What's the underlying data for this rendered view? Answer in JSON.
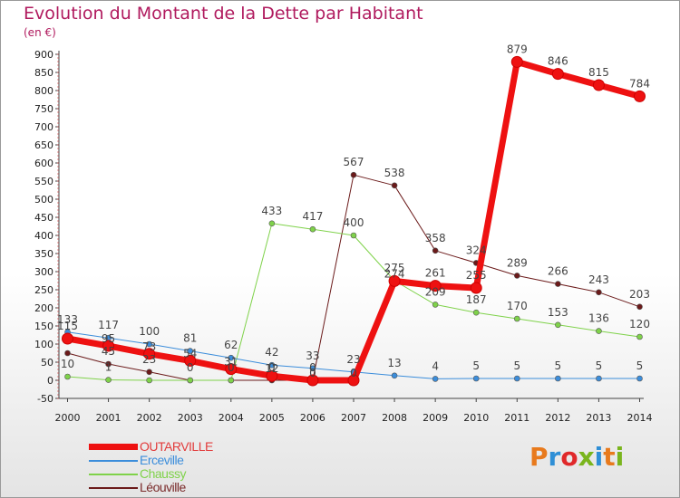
{
  "title": "Evolution du Montant de la Dette par Habitant",
  "subtitle": "(en €)",
  "logo": {
    "text": "Proxiti",
    "colors": [
      "#e87a1d",
      "#2f8fd6",
      "#e0292a",
      "#7ab51d",
      "#2f8fd6",
      "#e87a1d",
      "#7ab51d"
    ]
  },
  "chart_data": {
    "type": "line",
    "x": [
      "2000",
      "2001",
      "2002",
      "2003",
      "2004",
      "2005",
      "2006",
      "2007",
      "2008",
      "2009",
      "2010",
      "2011",
      "2012",
      "2013",
      "2014"
    ],
    "ylim": [
      -50,
      900
    ],
    "yticks": [
      -50,
      0,
      50,
      100,
      150,
      200,
      250,
      300,
      350,
      400,
      450,
      500,
      550,
      600,
      650,
      700,
      750,
      800,
      850,
      900
    ],
    "grid": false,
    "legend_position": "bottom-left",
    "series": [
      {
        "name": "OUTARVILLE",
        "color": "#ee1111",
        "width": 7,
        "marker": 6,
        "values": [
          115,
          95,
          73,
          54,
          31,
          12,
          0,
          0,
          274,
          261,
          255,
          879,
          846,
          815,
          784
        ],
        "labels": [
          "115",
          "",
          "",
          "",
          "",
          "",
          "",
          "",
          "",
          "261",
          "255",
          "879",
          "846",
          "815",
          "784"
        ]
      },
      {
        "name": "Erceville",
        "color": "#3b8ddb",
        "width": 1,
        "marker": 3,
        "values": [
          133,
          117,
          100,
          81,
          62,
          42,
          33,
          23,
          13,
          4,
          5,
          5,
          5,
          5,
          5
        ],
        "labels": [
          "133",
          "117",
          "100",
          "81",
          "62",
          "42",
          "33",
          "23",
          "13",
          "4",
          "5",
          "5",
          "5",
          "5",
          "5"
        ]
      },
      {
        "name": "Chaussy",
        "color": "#7fd24a",
        "width": 1,
        "marker": 3,
        "values": [
          10,
          1,
          0,
          0,
          0,
          433,
          417,
          400,
          275,
          209,
          187,
          170,
          153,
          136,
          120
        ],
        "labels": [
          "10",
          "1",
          "",
          "",
          "",
          "433",
          "417",
          "400",
          "275",
          "209",
          "187",
          "170",
          "153",
          "136",
          "120"
        ]
      },
      {
        "name": "Léouville",
        "color": "#6b1a1a",
        "width": 1,
        "marker": 3,
        "values": [
          75,
          45,
          23,
          0,
          0,
          0,
          0,
          567,
          538,
          358,
          324,
          289,
          266,
          243,
          203
        ],
        "labels": [
          "",
          "45",
          "23",
          "0",
          "0",
          "0",
          "0",
          "567",
          "538",
          "358",
          "324",
          "289",
          "266",
          "243",
          "203"
        ]
      }
    ],
    "extra_labels": [
      {
        "x": "2001",
        "y": 95,
        "text": "95"
      },
      {
        "x": "2002",
        "y": 73,
        "text": "73"
      },
      {
        "x": "2003",
        "y": 54,
        "text": "54"
      },
      {
        "x": "2004",
        "y": 31,
        "text": "31"
      },
      {
        "x": "2005",
        "y": 12,
        "text": "12"
      },
      {
        "x": "2006",
        "y": 0,
        "text": "0"
      },
      {
        "x": "2007",
        "y": 0,
        "text": "0"
      },
      {
        "x": "2008",
        "y": 274,
        "text": "274"
      }
    ]
  }
}
